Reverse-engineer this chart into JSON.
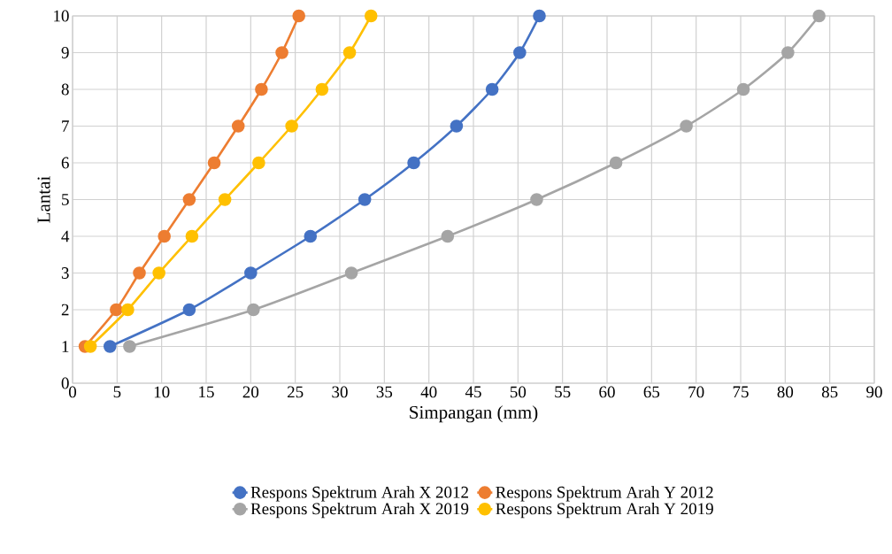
{
  "chart_data": {
    "type": "line",
    "xlabel": "Simpangan (mm)",
    "ylabel": "Lantai",
    "xlim": [
      0,
      90
    ],
    "ylim": [
      0,
      10
    ],
    "xticks": [
      0,
      5,
      10,
      15,
      20,
      25,
      30,
      35,
      40,
      45,
      50,
      55,
      60,
      65,
      70,
      75,
      80,
      85,
      90
    ],
    "yticks": [
      0,
      1,
      2,
      3,
      4,
      5,
      6,
      7,
      8,
      9,
      10
    ],
    "grid": true,
    "legend": "bottom",
    "marker": "circle",
    "line_style": "solid",
    "series": [
      {
        "name": "Respons Spektrum Arah X 2012",
        "color": "#4472c4",
        "x": [
          4.2,
          13.1,
          20.0,
          26.7,
          32.8,
          38.3,
          43.1,
          47.1,
          50.2,
          52.4
        ],
        "values": [
          1,
          2,
          3,
          4,
          5,
          6,
          7,
          8,
          9,
          10
        ]
      },
      {
        "name": "Respons Spektrum Arah Y 2012",
        "color": "#ed7d31",
        "x": [
          1.4,
          4.9,
          7.5,
          10.3,
          13.1,
          15.9,
          18.6,
          21.2,
          23.5,
          25.4
        ],
        "values": [
          1,
          2,
          3,
          4,
          5,
          6,
          7,
          8,
          9,
          10
        ]
      },
      {
        "name": "Respons Spektrum Arah X 2019",
        "color": "#a5a5a5",
        "x": [
          6.4,
          20.3,
          31.3,
          42.1,
          52.1,
          61.0,
          68.9,
          75.3,
          80.3,
          83.8
        ],
        "values": [
          1,
          2,
          3,
          4,
          5,
          6,
          7,
          8,
          9,
          10
        ]
      },
      {
        "name": "Respons Spektrum Arah Y 2019",
        "color": "#ffc000",
        "x": [
          2.0,
          6.2,
          9.7,
          13.4,
          17.1,
          20.9,
          24.6,
          28.0,
          31.1,
          33.5
        ],
        "values": [
          1,
          2,
          3,
          4,
          5,
          6,
          7,
          8,
          9,
          10
        ]
      }
    ]
  }
}
